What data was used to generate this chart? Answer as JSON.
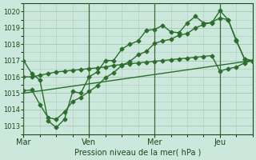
{
  "background_color": "#cce8dc",
  "grid_color": "#aaccbb",
  "line_color": "#2d6e2d",
  "text_color": "#1a4a1a",
  "xlabel": "Pression niveau de la mer( hPa )",
  "ylim": [
    1012.5,
    1020.5
  ],
  "yticks": [
    1013,
    1014,
    1015,
    1016,
    1017,
    1018,
    1019,
    1020
  ],
  "xtick_labels": [
    "Mar",
    "Ven",
    "Mer",
    "Jeu"
  ],
  "xtick_positions": [
    0,
    48,
    96,
    144
  ],
  "xlim": [
    0,
    168
  ],
  "vline_positions": [
    0,
    48,
    96,
    144
  ],
  "line1_x": [
    0,
    6,
    12,
    18,
    24,
    30,
    36,
    42,
    48,
    54,
    60,
    66,
    72,
    78,
    84,
    90,
    96,
    102,
    108,
    114,
    120,
    126,
    132,
    138,
    144,
    150,
    156,
    162,
    168
  ],
  "line1_y": [
    1017.0,
    1016.2,
    1015.8,
    1013.3,
    1012.9,
    1013.4,
    1015.1,
    1015.0,
    1016.0,
    1016.3,
    1017.0,
    1017.0,
    1017.7,
    1018.0,
    1018.2,
    1018.85,
    1018.9,
    1019.15,
    1018.75,
    1018.7,
    1019.3,
    1019.7,
    1019.3,
    1019.3,
    1020.05,
    1019.5,
    1018.2,
    1017.1,
    1017.0
  ],
  "line2_x": [
    0,
    6,
    12,
    18,
    24,
    30,
    36,
    42,
    48,
    54,
    60,
    66,
    72,
    78,
    84,
    90,
    96,
    102,
    108,
    114,
    120,
    126,
    132,
    138,
    144,
    150,
    156,
    162,
    168
  ],
  "line2_y": [
    1016.0,
    1016.0,
    1016.1,
    1016.2,
    1016.3,
    1016.35,
    1016.4,
    1016.45,
    1016.5,
    1016.55,
    1016.6,
    1016.7,
    1016.75,
    1016.8,
    1016.85,
    1016.9,
    1016.95,
    1017.0,
    1017.05,
    1017.1,
    1017.15,
    1017.2,
    1017.25,
    1017.3,
    1016.35,
    1016.5,
    1016.6,
    1016.85,
    1017.0
  ],
  "line3_x": [
    0,
    6,
    12,
    18,
    24,
    30,
    36,
    42,
    48,
    54,
    60,
    66,
    72,
    78,
    84,
    90,
    96,
    102,
    108,
    114,
    120,
    126,
    132,
    138,
    144,
    150,
    156,
    162,
    168
  ],
  "line3_y": [
    1015.15,
    1015.2,
    1014.3,
    1013.5,
    1013.4,
    1013.85,
    1014.5,
    1014.75,
    1015.1,
    1015.45,
    1015.95,
    1016.25,
    1016.7,
    1016.95,
    1017.35,
    1017.55,
    1018.05,
    1018.2,
    1018.3,
    1018.55,
    1018.65,
    1019.0,
    1019.2,
    1019.35,
    1019.6,
    1019.5,
    1018.25,
    1017.1,
    1016.95
  ],
  "line4_x": [
    0,
    168
  ],
  "line4_y": [
    1015.0,
    1017.0
  ],
  "marker": "D",
  "markersize": 2.5,
  "linewidth": 1.0
}
